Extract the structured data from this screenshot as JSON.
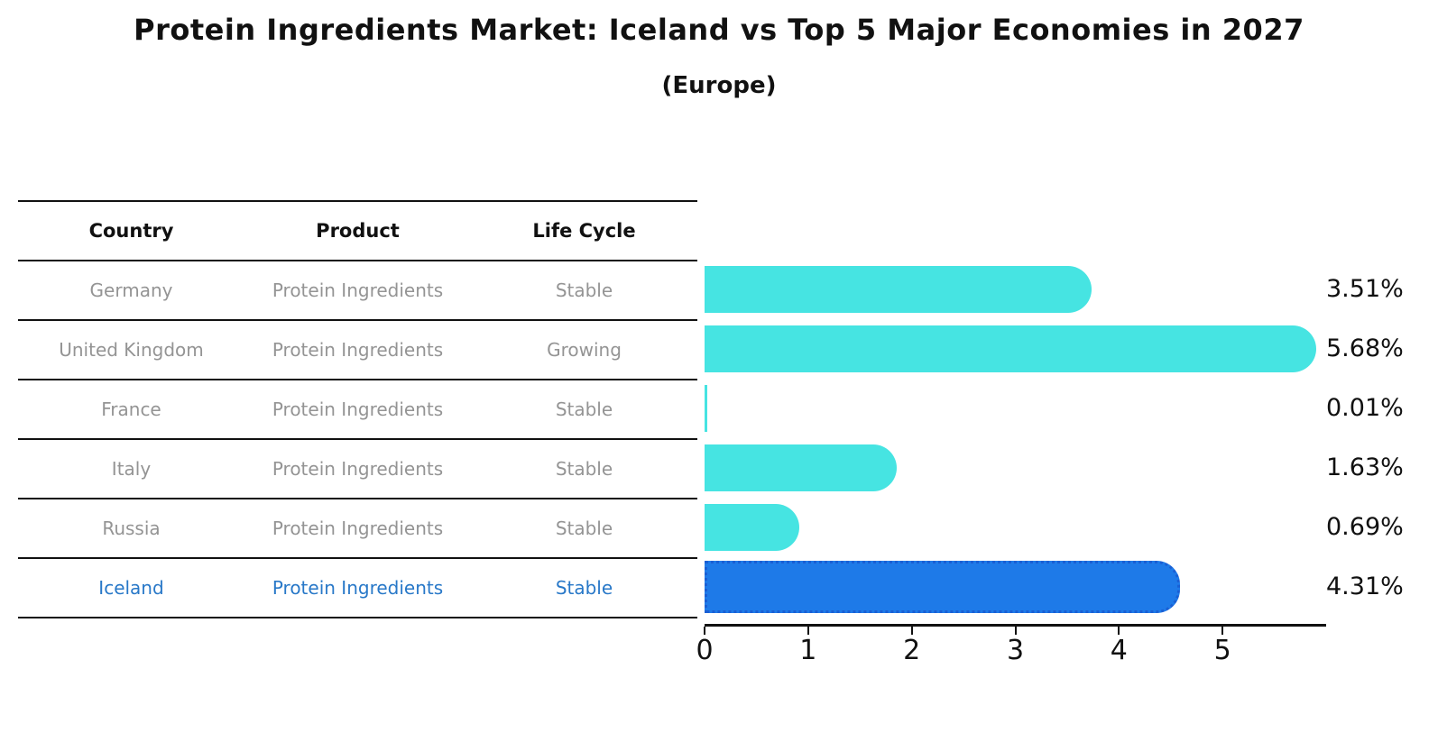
{
  "title": "Protein Ingredients Market: Iceland vs Top 5 Major Economies in 2027",
  "subtitle": "(Europe)",
  "table": {
    "headers": [
      "Country",
      "Product",
      "Life Cycle"
    ],
    "rows": [
      {
        "country": "Germany",
        "product": "Protein Ingredients",
        "life_cycle": "Stable"
      },
      {
        "country": "United Kingdom",
        "product": "Protein Ingredients",
        "life_cycle": "Growing"
      },
      {
        "country": "France",
        "product": "Protein Ingredients",
        "life_cycle": "Stable"
      },
      {
        "country": "Italy",
        "product": "Protein Ingredients",
        "life_cycle": "Stable"
      },
      {
        "country": "Russia",
        "product": "Protein Ingredients",
        "life_cycle": "Stable"
      },
      {
        "country": "Iceland",
        "product": "Protein Ingredients",
        "life_cycle": "Stable"
      }
    ],
    "highlighted_row": "Iceland"
  },
  "chart_data": {
    "type": "bar",
    "orientation": "horizontal",
    "title": "Protein Ingredients Market: Iceland vs Top 5 Major Economies in 2027 (Europe)",
    "categories": [
      "Germany",
      "United Kingdom",
      "France",
      "Italy",
      "Russia",
      "Iceland"
    ],
    "values": [
      3.51,
      5.68,
      0.01,
      1.63,
      0.69,
      4.31
    ],
    "value_labels": [
      "3.51%",
      "5.68%",
      "0.01%",
      "1.63%",
      "0.69%",
      "4.31%"
    ],
    "xlabel": "",
    "ylabel": "",
    "xlim": [
      0,
      6
    ],
    "x_ticks": [
      0,
      1,
      2,
      3,
      4,
      5
    ],
    "grid": false,
    "legend": false,
    "highlight_index": 5,
    "colors": {
      "bar": "#46E4E2",
      "highlight_bar": "#1E7AE8",
      "highlight_border": "#1A5FD4",
      "highlight_text": "#2878C8",
      "table_text": "#949494",
      "axis": "#111111"
    }
  }
}
